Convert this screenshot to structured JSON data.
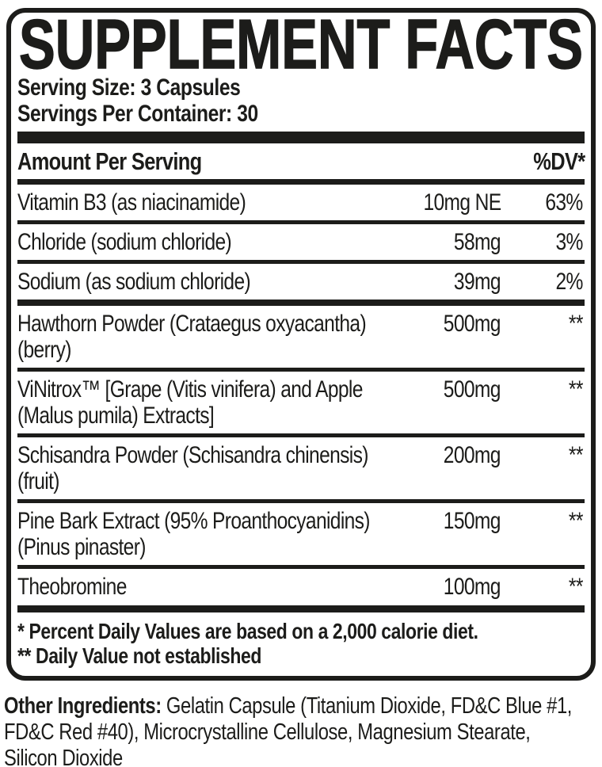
{
  "colors": {
    "ink": "#1c1c1a",
    "background": "#ffffff"
  },
  "label": {
    "title": "SUPPLEMENT FACTS",
    "serving_size": "Serving Size: 3 Capsules",
    "servings_per_container": "Servings Per Container: 30",
    "columns": {
      "amount_header": "Amount Per Serving",
      "dv_header": "%DV*"
    },
    "rows": [
      {
        "name": "Vitamin B3 (as niacinamide)",
        "amount": "10mg NE",
        "dv": "63%"
      },
      {
        "name": "Chloride (sodium chloride)",
        "amount": "58mg",
        "dv": "3%"
      },
      {
        "name": "Sodium (as sodium chloride)",
        "amount": "39mg",
        "dv": "2%"
      },
      {
        "name": "Hawthorn Powder (Crataegus oxyacantha)\n(berry)",
        "amount": "500mg",
        "dv": "**"
      },
      {
        "name": "ViNitrox™ [Grape (Vitis vinifera) and Apple\n(Malus pumila) Extracts]",
        "amount": "500mg",
        "dv": "**"
      },
      {
        "name": "Schisandra Powder (Schisandra chinensis)\n(fruit)",
        "amount": "200mg",
        "dv": "**"
      },
      {
        "name": "Pine Bark Extract (95% Proanthocyanidins)\n(Pinus pinaster)",
        "amount": "150mg",
        "dv": "**"
      },
      {
        "name": "Theobromine",
        "amount": "100mg",
        "dv": "**"
      }
    ],
    "footnotes": [
      "* Percent Daily Values are based on a 2,000 calorie diet.",
      "** Daily Value not established"
    ]
  },
  "other_ingredients": {
    "label": "Other Ingredients:",
    "text": " Gelatin Capsule (Titanium Dioxide, FD&C Blue #1,\nFD&C Red #40), Microcrystalline Cellulose, Magnesium Stearate,\nSilicon Dioxide"
  }
}
